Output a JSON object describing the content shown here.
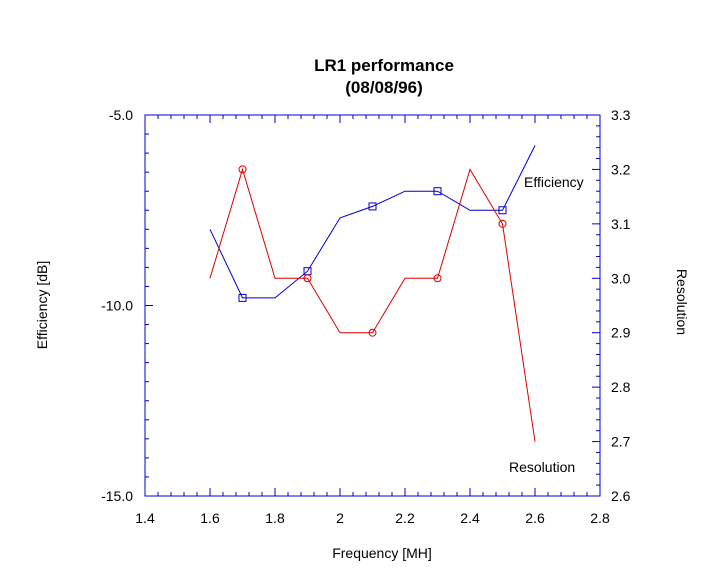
{
  "chart_data": {
    "type": "line",
    "title": "LR1 performance",
    "subtitle": "(08/08/96)",
    "xlabel": "Frequency [MH]",
    "ylabel_left": "Efficiency [dB]",
    "ylabel_right": "Resolution",
    "xlim": [
      1.4,
      2.8
    ],
    "ylim_left": [
      -15.0,
      -5.0
    ],
    "ylim_right": [
      2.6,
      3.3
    ],
    "x_ticks": [
      "1.4",
      "1.6",
      "1.8",
      "2",
      "2.2",
      "2.4",
      "2.6",
      "2.8"
    ],
    "y_left_ticks": [
      "-5.0",
      "-10.0",
      "-15.0"
    ],
    "y_right_ticks": [
      "3.3",
      "3.2",
      "3.1",
      "3.0",
      "2.9",
      "2.8",
      "2.7",
      "2.6"
    ],
    "grid": false,
    "series": [
      {
        "name": "Efficiency",
        "axis": "left",
        "color": "#0000cc",
        "marker": "square",
        "x": [
          1.6,
          1.7,
          1.8,
          1.9,
          2.0,
          2.1,
          2.2,
          2.3,
          2.4,
          2.5,
          2.6
        ],
        "y": [
          -8.0,
          -9.8,
          -9.8,
          -9.1,
          -7.7,
          -7.4,
          -7.0,
          -7.0,
          -7.5,
          -7.5,
          -5.8
        ],
        "marker_x": [
          1.7,
          1.9,
          2.1,
          2.3,
          2.5
        ]
      },
      {
        "name": "Resolution",
        "axis": "right",
        "color": "#dd0000",
        "marker": "circle",
        "x": [
          1.6,
          1.7,
          1.8,
          1.9,
          2.0,
          2.1,
          2.2,
          2.3,
          2.4,
          2.5,
          2.6
        ],
        "y": [
          3.0,
          3.2,
          3.0,
          3.0,
          2.9,
          2.9,
          3.0,
          3.0,
          3.2,
          3.1,
          2.7
        ],
        "marker_x": [
          1.7,
          1.9,
          2.1,
          2.3,
          2.5
        ]
      }
    ]
  }
}
